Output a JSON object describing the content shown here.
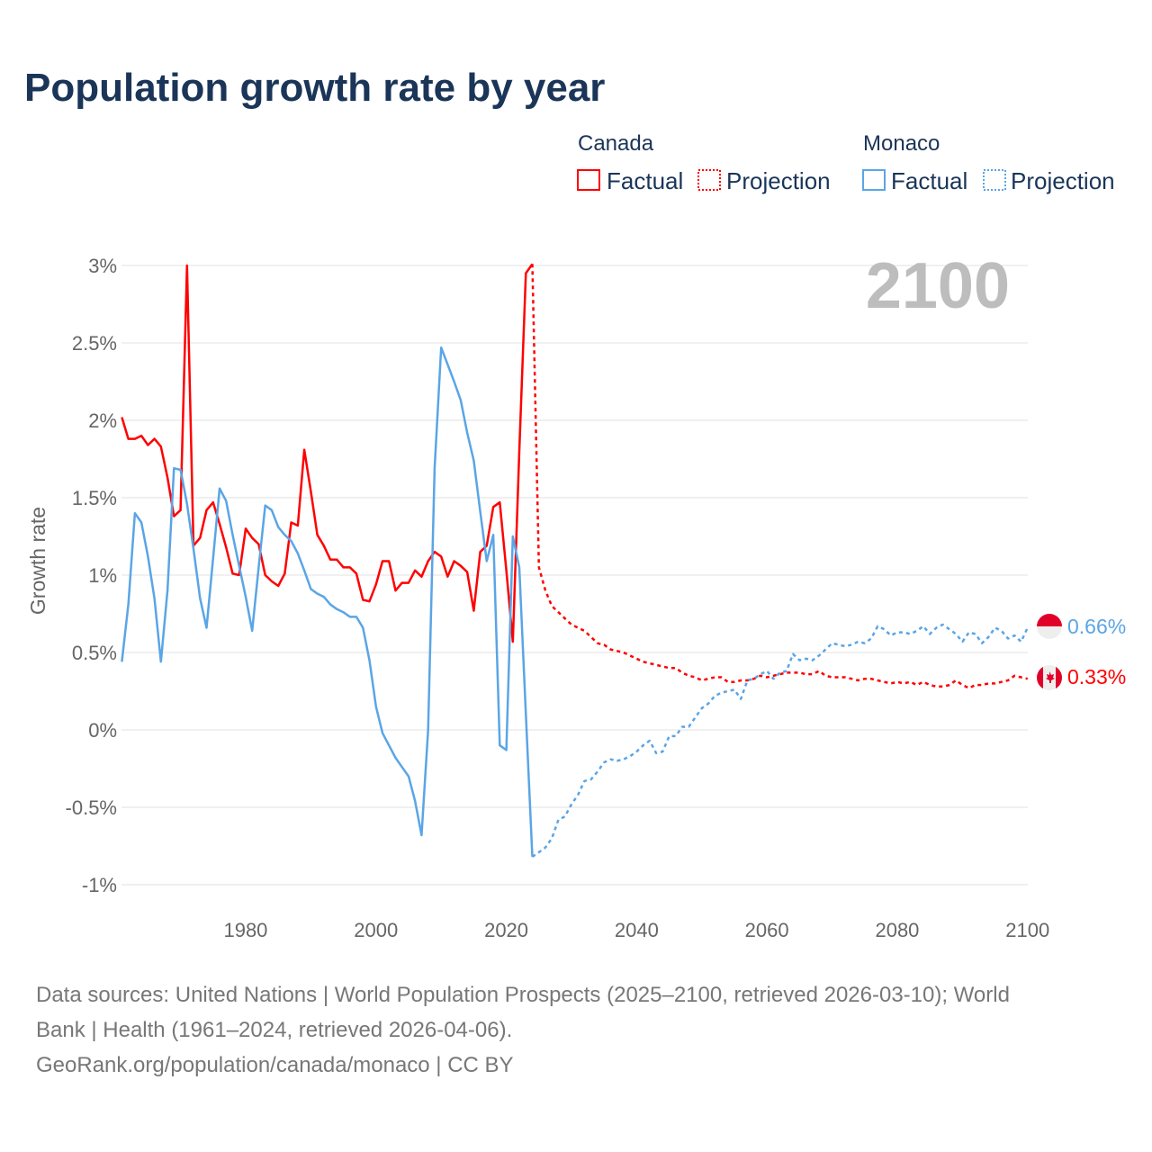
{
  "chart_data": {
    "type": "line",
    "title": "Population growth rate by year",
    "ylabel": "Growth rate",
    "xlabel": "",
    "xlim": [
      1961,
      2100
    ],
    "ylim": [
      -1.1,
      3.05
    ],
    "x_ticks": [
      1980,
      2000,
      2020,
      2040,
      2060,
      2080,
      2100
    ],
    "y_ticks": [
      3,
      2.5,
      2,
      1.5,
      1,
      0.5,
      0,
      -0.5,
      -1
    ],
    "y_tick_labels": [
      "3%",
      "2.5%",
      "2%",
      "1.5%",
      "1%",
      "0.5%",
      "0%",
      "-0.5%",
      "-1%"
    ],
    "x_tick_labels": [
      "1980",
      "2000",
      "2020",
      "2040",
      "2060",
      "2080",
      "2100"
    ],
    "grid": true,
    "current_year": "2100",
    "legend": {
      "placement": "top-right",
      "groups": [
        {
          "name": "Canada",
          "factual": "Factual",
          "projection": "Projection",
          "color": "#ff0000"
        },
        {
          "name": "Monaco",
          "factual": "Factual",
          "projection": "Projection",
          "color": "#5aa5e6"
        }
      ]
    },
    "end_labels": {
      "monaco": "0.66%",
      "canada": "0.33%"
    },
    "series": [
      {
        "name": "Canada",
        "kind": "factual",
        "color": "#ff0000",
        "x_start": 1961,
        "values": [
          2.02,
          1.88,
          1.88,
          1.9,
          1.84,
          1.88,
          1.83,
          1.63,
          1.38,
          1.42,
          3.0,
          1.19,
          1.24,
          1.42,
          1.47,
          1.33,
          1.18,
          1.01,
          1.0,
          1.3,
          1.24,
          1.2,
          1.0,
          0.96,
          0.93,
          1.01,
          1.34,
          1.32,
          1.81,
          1.54,
          1.26,
          1.19,
          1.1,
          1.1,
          1.05,
          1.05,
          1.01,
          0.84,
          0.83,
          0.94,
          1.09,
          1.09,
          0.9,
          0.95,
          0.95,
          1.03,
          0.99,
          1.09,
          1.15,
          1.12,
          0.99,
          1.09,
          1.06,
          1.02,
          0.77,
          1.15,
          1.19,
          1.44,
          1.47,
          1.03,
          0.57,
          1.8,
          2.95,
          3.01
        ]
      },
      {
        "name": "Canada",
        "kind": "projection",
        "color": "#ff0000",
        "x_start": 2024,
        "values": [
          3.01,
          1.05,
          0.9,
          0.8,
          0.76,
          0.72,
          0.68,
          0.66,
          0.64,
          0.6,
          0.56,
          0.55,
          0.52,
          0.51,
          0.5,
          0.48,
          0.46,
          0.44,
          0.43,
          0.42,
          0.41,
          0.4,
          0.4,
          0.37,
          0.35,
          0.34,
          0.32,
          0.33,
          0.34,
          0.34,
          0.31,
          0.31,
          0.32,
          0.32,
          0.33,
          0.35,
          0.34,
          0.35,
          0.36,
          0.37,
          0.37,
          0.37,
          0.36,
          0.36,
          0.38,
          0.35,
          0.34,
          0.34,
          0.34,
          0.33,
          0.32,
          0.33,
          0.33,
          0.32,
          0.31,
          0.3,
          0.31,
          0.3,
          0.31,
          0.29,
          0.31,
          0.29,
          0.28,
          0.28,
          0.29,
          0.32,
          0.29,
          0.27,
          0.29,
          0.29,
          0.3,
          0.3,
          0.31,
          0.32,
          0.35,
          0.34,
          0.33
        ]
      },
      {
        "name": "Monaco",
        "kind": "factual",
        "color": "#5aa5e6",
        "x_start": 1961,
        "values": [
          0.44,
          0.81,
          1.4,
          1.34,
          1.12,
          0.85,
          0.44,
          0.9,
          1.69,
          1.68,
          1.46,
          1.17,
          0.85,
          0.66,
          1.11,
          1.56,
          1.48,
          1.26,
          1.06,
          0.86,
          0.64,
          1.05,
          1.45,
          1.42,
          1.31,
          1.26,
          1.22,
          1.14,
          1.03,
          0.91,
          0.88,
          0.86,
          0.81,
          0.78,
          0.76,
          0.73,
          0.73,
          0.66,
          0.45,
          0.15,
          -0.02,
          -0.1,
          -0.18,
          -0.24,
          -0.3,
          -0.46,
          -0.68,
          0.0,
          1.69,
          2.47,
          2.36,
          2.25,
          2.13,
          1.92,
          1.74,
          1.41,
          1.09,
          1.26,
          -0.1,
          -0.13,
          1.25,
          1.05,
          0.1,
          -0.82
        ]
      },
      {
        "name": "Monaco",
        "kind": "projection",
        "color": "#5aa5e6",
        "x_start": 2024,
        "values": [
          -0.82,
          -0.79,
          -0.76,
          -0.7,
          -0.58,
          -0.56,
          -0.48,
          -0.42,
          -0.33,
          -0.32,
          -0.27,
          -0.21,
          -0.19,
          -0.2,
          -0.19,
          -0.17,
          -0.14,
          -0.1,
          -0.07,
          -0.15,
          -0.14,
          -0.04,
          -0.04,
          0.02,
          0.02,
          0.08,
          0.14,
          0.17,
          0.22,
          0.24,
          0.25,
          0.26,
          0.2,
          0.32,
          0.33,
          0.36,
          0.38,
          0.33,
          0.37,
          0.38,
          0.49,
          0.45,
          0.46,
          0.45,
          0.48,
          0.52,
          0.56,
          0.55,
          0.54,
          0.55,
          0.57,
          0.56,
          0.59,
          0.67,
          0.65,
          0.61,
          0.63,
          0.63,
          0.62,
          0.64,
          0.67,
          0.62,
          0.66,
          0.68,
          0.65,
          0.62,
          0.57,
          0.63,
          0.62,
          0.56,
          0.6,
          0.66,
          0.64,
          0.59,
          0.61,
          0.57,
          0.66
        ]
      }
    ]
  },
  "footer": {
    "sources_line1": "Data sources: United Nations | World Population Prospects (2025–2100, retrieved 2026-03-10); World",
    "sources_line2": "Bank | Health (1961–2024, retrieved 2026-04-06).",
    "credit": "GeoRank.org/population/canada/monaco | CC BY"
  }
}
